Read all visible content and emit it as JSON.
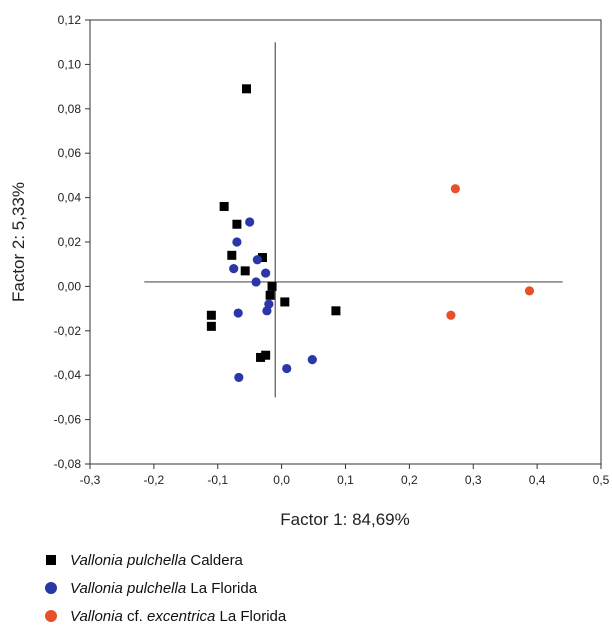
{
  "chart_data": {
    "type": "scatter",
    "title": "",
    "xlabel": "Factor 1: 84,69%",
    "ylabel": "Factor 2: 5,33%",
    "xlim": [
      -0.3,
      0.5
    ],
    "ylim": [
      -0.08,
      0.12
    ],
    "x_ticks": [
      "-0,3",
      "-0,2",
      "-0,1",
      "0,0",
      "0,1",
      "0,2",
      "0,3",
      "0,4",
      "0,5"
    ],
    "y_ticks": [
      "0,12",
      "0,10",
      "0,08",
      "0,06",
      "0,04",
      "0,02",
      "0,00",
      "-0,02",
      "-0,04",
      "-0,06",
      "-0,08"
    ],
    "reference_lines": {
      "horizontal": {
        "y": 0.002,
        "x_from": -0.215,
        "x_to": 0.44
      },
      "vertical": {
        "x": -0.01,
        "y_from": -0.05,
        "y_to": 0.11
      }
    },
    "grid": false,
    "legend_position": "bottom",
    "series": [
      {
        "name_parts": [
          [
            "Vallonia pulchella",
            true
          ],
          [
            " Caldera",
            false
          ]
        ],
        "marker": "square",
        "color": "#000000",
        "points": [
          [
            -0.055,
            0.089
          ],
          [
            -0.09,
            0.036
          ],
          [
            -0.07,
            0.028
          ],
          [
            -0.078,
            0.014
          ],
          [
            -0.057,
            0.007
          ],
          [
            -0.03,
            0.013
          ],
          [
            -0.015,
            0.0
          ],
          [
            -0.018,
            -0.004
          ],
          [
            0.005,
            -0.007
          ],
          [
            -0.11,
            -0.013
          ],
          [
            -0.11,
            -0.018
          ],
          [
            0.085,
            -0.011
          ],
          [
            -0.033,
            -0.032
          ],
          [
            -0.025,
            -0.031
          ]
        ]
      },
      {
        "name_parts": [
          [
            "Vallonia pulchella",
            true
          ],
          [
            " La Florida",
            false
          ]
        ],
        "marker": "circle",
        "color": "#2b37a6",
        "points": [
          [
            -0.05,
            0.029
          ],
          [
            -0.07,
            0.02
          ],
          [
            -0.038,
            0.012
          ],
          [
            -0.075,
            0.008
          ],
          [
            -0.025,
            0.006
          ],
          [
            -0.04,
            0.002
          ],
          [
            -0.02,
            -0.008
          ],
          [
            -0.023,
            -0.011
          ],
          [
            -0.068,
            -0.012
          ],
          [
            0.048,
            -0.033
          ],
          [
            0.008,
            -0.037
          ],
          [
            -0.067,
            -0.041
          ]
        ]
      },
      {
        "name_parts": [
          [
            "Vallonia",
            true
          ],
          [
            " cf. ",
            false
          ],
          [
            "excentrica",
            true
          ],
          [
            " La Florida",
            false
          ]
        ],
        "marker": "circle",
        "color": "#e8502a",
        "points": [
          [
            0.272,
            0.044
          ],
          [
            0.388,
            -0.002
          ],
          [
            0.265,
            -0.013
          ]
        ]
      }
    ]
  }
}
